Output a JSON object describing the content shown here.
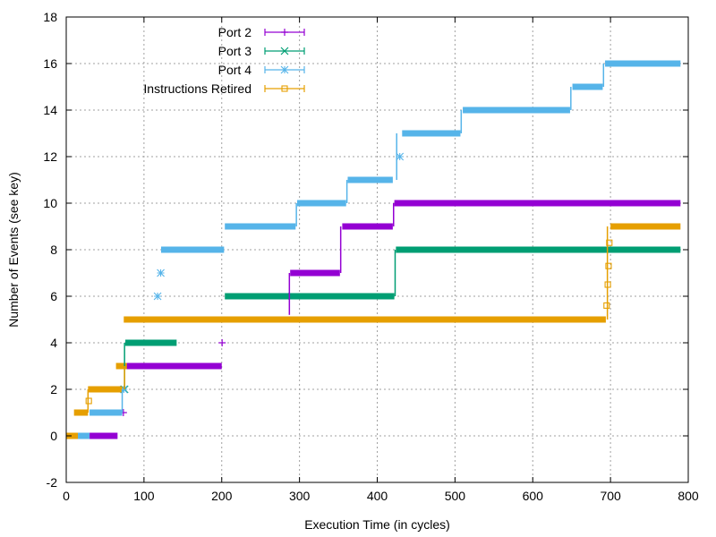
{
  "chart_data": {
    "type": "line",
    "xlabel": "Execution Time (in cycles)",
    "ylabel": "Number of Events (see key)",
    "xlim": [
      0,
      800
    ],
    "ylim": [
      -2,
      18
    ],
    "xticks": [
      0,
      100,
      200,
      300,
      400,
      500,
      600,
      700,
      800
    ],
    "yticks": [
      -2,
      0,
      2,
      4,
      6,
      8,
      10,
      12,
      14,
      16,
      18
    ],
    "xtick_labels": [
      "0",
      "100",
      "200",
      "300",
      "400",
      "500",
      "600",
      "700",
      "800"
    ],
    "ytick_labels": [
      "-2",
      "0",
      "2",
      "4",
      "6",
      "8",
      "10",
      "12",
      "14",
      "16",
      "18"
    ],
    "grid": true,
    "legend_position": "top-left",
    "series": [
      {
        "name": "Port 2",
        "color": "#9400d3",
        "marker": "plus",
        "steps": [
          [
            30,
            66,
            0
          ],
          [
            72,
            75,
            1
          ],
          [
            77,
            200,
            3
          ],
          [
            200,
            201,
            4
          ],
          [
            285,
            288,
            6
          ],
          [
            288,
            352,
            7
          ],
          [
            355,
            420,
            9
          ],
          [
            422,
            790,
            10
          ]
        ]
      },
      {
        "name": "Port 3",
        "color": "#009e73",
        "marker": "cross",
        "steps": [
          [
            74,
            76,
            2
          ],
          [
            76,
            142,
            4
          ],
          [
            204,
            422,
            6
          ],
          [
            424,
            790,
            8
          ]
        ]
      },
      {
        "name": "Port 4",
        "color": "#56b4e9",
        "marker": "star",
        "steps": [
          [
            15,
            30,
            0
          ],
          [
            30,
            72,
            1
          ],
          [
            72,
            76,
            2
          ],
          [
            115,
            120,
            6
          ],
          [
            121,
            122,
            7
          ],
          [
            122,
            203,
            8
          ],
          [
            204,
            295,
            9
          ],
          [
            297,
            360,
            10
          ],
          [
            362,
            420,
            11
          ],
          [
            428,
            430,
            12
          ],
          [
            432,
            507,
            13
          ],
          [
            510,
            648,
            14
          ],
          [
            651,
            690,
            15
          ],
          [
            693,
            790,
            16
          ]
        ]
      },
      {
        "name": "Instructions Retired",
        "color": "#e69f00",
        "marker": "box",
        "steps": [
          [
            0,
            15,
            0
          ],
          [
            10,
            28,
            1
          ],
          [
            28,
            30,
            1.5
          ],
          [
            28,
            72,
            2
          ],
          [
            64,
            78,
            3
          ],
          [
            74,
            694,
            5
          ],
          [
            694,
            696,
            5.6
          ],
          [
            696,
            697,
            6.5
          ],
          [
            697,
            698,
            7.3
          ],
          [
            698,
            699,
            8.3
          ],
          [
            700,
            790,
            9
          ]
        ]
      }
    ]
  }
}
